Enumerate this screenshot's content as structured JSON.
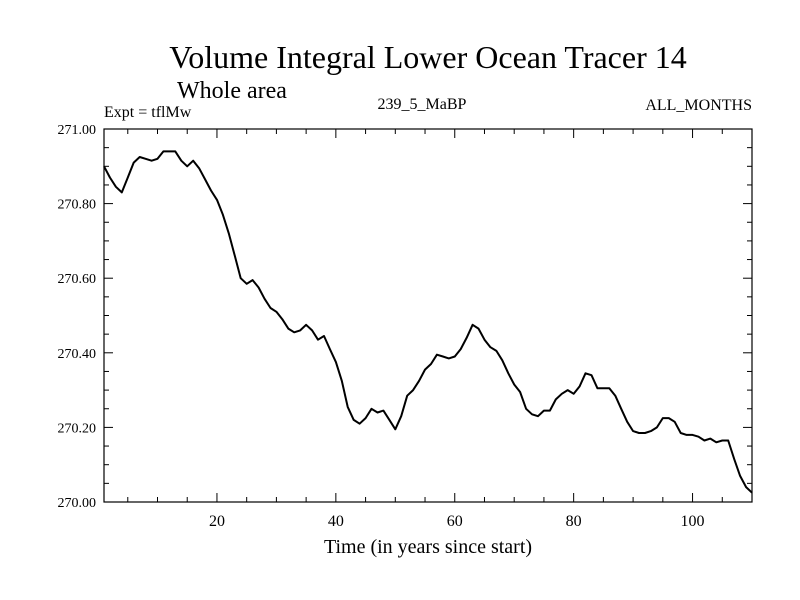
{
  "chart_data": {
    "type": "line",
    "title": "Volume Integral Lower Ocean Tracer 14",
    "subtitle": "Whole area",
    "annotations": {
      "left": "Expt = tflMw",
      "center": "239_5_MaBP",
      "right": "ALL_MONTHS"
    },
    "xlabel": "Time (in years since start)",
    "ylabel": "",
    "xlim": [
      1,
      110
    ],
    "ylim": [
      270.0,
      271.0
    ],
    "x_ticks": [
      20,
      40,
      60,
      80,
      100
    ],
    "y_ticks": [
      "270.00",
      "270.20",
      "270.40",
      "270.60",
      "270.80",
      "271.00"
    ],
    "grid": false,
    "series": [
      {
        "name": "Volume Integral Lower Ocean Tracer 14",
        "x": [
          1,
          2,
          3,
          4,
          5,
          6,
          7,
          8,
          9,
          10,
          11,
          12,
          13,
          14,
          15,
          16,
          17,
          18,
          19,
          20,
          21,
          22,
          23,
          24,
          25,
          26,
          27,
          28,
          29,
          30,
          31,
          32,
          33,
          34,
          35,
          36,
          37,
          38,
          39,
          40,
          41,
          42,
          43,
          44,
          45,
          46,
          47,
          48,
          49,
          50,
          51,
          52,
          53,
          54,
          55,
          56,
          57,
          58,
          59,
          60,
          61,
          62,
          63,
          64,
          65,
          66,
          67,
          68,
          69,
          70,
          71,
          72,
          73,
          74,
          75,
          76,
          77,
          78,
          79,
          80,
          81,
          82,
          83,
          84,
          85,
          86,
          87,
          88,
          89,
          90,
          91,
          92,
          93,
          94,
          95,
          96,
          97,
          98,
          99,
          100,
          101,
          102,
          103,
          104,
          105,
          106,
          107,
          108,
          109,
          110
        ],
        "values": [
          270.9,
          270.87,
          270.845,
          270.83,
          270.87,
          270.91,
          270.925,
          270.92,
          270.915,
          270.92,
          270.94,
          270.94,
          270.94,
          270.915,
          270.9,
          270.915,
          270.895,
          270.865,
          270.835,
          270.81,
          270.77,
          270.72,
          270.66,
          270.6,
          270.585,
          270.595,
          270.575,
          270.545,
          270.52,
          270.51,
          270.49,
          270.465,
          270.455,
          270.46,
          270.475,
          270.46,
          270.435,
          270.445,
          270.41,
          270.375,
          270.325,
          270.255,
          270.22,
          270.21,
          270.225,
          270.25,
          270.24,
          270.245,
          270.22,
          270.195,
          270.23,
          270.285,
          270.3,
          270.325,
          270.355,
          270.37,
          270.395,
          270.39,
          270.385,
          270.39,
          270.41,
          270.44,
          270.475,
          270.465,
          270.435,
          270.415,
          270.405,
          270.38,
          270.345,
          270.315,
          270.295,
          270.25,
          270.235,
          270.23,
          270.245,
          270.245,
          270.275,
          270.29,
          270.3,
          270.29,
          270.31,
          270.345,
          270.34,
          270.305,
          270.305,
          270.305,
          270.285,
          270.25,
          270.215,
          270.19,
          270.185,
          270.185,
          270.19,
          270.2,
          270.225,
          270.225,
          270.215,
          270.185,
          270.18,
          270.18,
          270.175,
          270.165,
          270.17,
          270.16,
          270.165,
          270.165,
          270.115,
          270.07,
          270.04,
          270.025
        ]
      }
    ]
  }
}
